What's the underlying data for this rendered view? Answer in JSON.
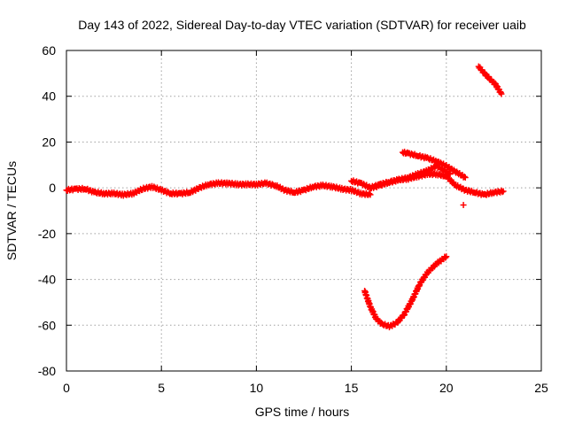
{
  "chart_data": {
    "type": "scatter",
    "title": "Day 143 of 2022, Sidereal Day-to-day VTEC variation (SDTVAR) for receiver uaib",
    "xlabel": "GPS time / hours",
    "ylabel": "SDTVAR / TECUs",
    "xlim": [
      0,
      25
    ],
    "ylim": [
      -80,
      60
    ],
    "xticks": [
      0,
      5,
      10,
      15,
      20,
      25
    ],
    "yticks": [
      -80,
      -60,
      -40,
      -20,
      0,
      20,
      40,
      60
    ],
    "grid": true,
    "marker": "+",
    "color": "#ff0000",
    "series": [
      {
        "name": "main-trace",
        "x": [
          0.0,
          0.5,
          1.0,
          1.5,
          2.0,
          2.5,
          3.0,
          3.5,
          4.0,
          4.5,
          5.0,
          5.5,
          6.0,
          6.5,
          7.0,
          7.5,
          8.0,
          8.5,
          9.0,
          9.5,
          10.0,
          10.5,
          11.0,
          11.5,
          12.0,
          12.5,
          13.0,
          13.5,
          14.0,
          14.5,
          15.0,
          15.5,
          16.0
        ],
        "y": [
          -1.0,
          -0.5,
          -0.5,
          -2.0,
          -2.5,
          -2.5,
          -3.0,
          -2.5,
          -0.5,
          0.5,
          -1.0,
          -2.5,
          -2.5,
          -2.0,
          0.0,
          1.5,
          2.0,
          2.0,
          1.5,
          1.5,
          1.5,
          2.0,
          1.0,
          -1.0,
          -2.0,
          -1.0,
          0.5,
          1.0,
          0.5,
          -0.5,
          -1.0,
          -2.5,
          -3.0
        ]
      },
      {
        "name": "afternoon-trace",
        "x": [
          15.0,
          15.5,
          16.0,
          16.5,
          17.0,
          17.5,
          18.0,
          18.5,
          19.0,
          19.5,
          20.0,
          20.5,
          21.0,
          21.5,
          22.0,
          22.5,
          23.0
        ],
        "y": [
          3.0,
          2.0,
          0.0,
          1.0,
          2.5,
          3.5,
          4.0,
          5.0,
          6.0,
          6.0,
          5.0,
          1.0,
          -1.0,
          -2.0,
          -3.0,
          -2.0,
          -1.5
        ]
      },
      {
        "name": "rising-arc",
        "x": [
          16.0,
          16.5,
          17.0,
          17.5,
          18.0,
          18.5,
          19.0,
          19.5,
          20.2
        ],
        "y": [
          0.0,
          1.5,
          2.5,
          3.5,
          4.5,
          6.0,
          7.5,
          9.5,
          6.0
        ]
      },
      {
        "name": "upper-arc",
        "x": [
          17.7,
          18.0,
          18.5,
          19.0,
          19.5,
          20.0,
          20.5,
          21.0
        ],
        "y": [
          15.5,
          15.0,
          14.0,
          13.0,
          11.5,
          9.5,
          7.0,
          4.5
        ]
      },
      {
        "name": "lower-dip",
        "x": [
          15.7,
          16.0,
          16.3,
          16.6,
          17.0,
          17.4,
          17.8,
          18.2,
          18.6,
          19.0,
          19.5,
          20.0
        ],
        "y": [
          -45,
          -52,
          -57,
          -59.5,
          -60.5,
          -59,
          -55,
          -49,
          -42,
          -37,
          -33,
          -30
        ]
      },
      {
        "name": "upper-right-segment",
        "x": [
          21.7,
          22.0,
          22.3,
          22.6,
          22.9
        ],
        "y": [
          53,
          50,
          47.5,
          45,
          41
        ]
      },
      {
        "name": "outlier",
        "x": [
          20.9
        ],
        "y": [
          -7.5
        ]
      }
    ]
  }
}
